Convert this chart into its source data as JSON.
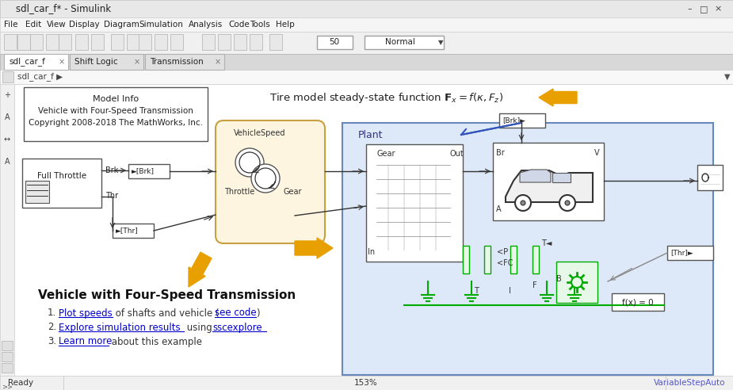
{
  "title": "sdl_car_f* - Simulink",
  "bg_color": "#f0f0f0",
  "canvas_color": "#ffffff",
  "statusbar_text_left": "Ready",
  "statusbar_text_mid": "153%",
  "statusbar_text_right": "VariableStepAuto",
  "menubar_items": [
    "File",
    "Edit",
    "View",
    "Display",
    "Diagram",
    "Simulation",
    "Analysis",
    "Code",
    "Tools",
    "Help"
  ],
  "tab_data": [
    [
      "sdl_car_f",
      true
    ],
    [
      "Shift Logic",
      false
    ],
    [
      "Transmission",
      false
    ]
  ],
  "breadcrumb": "sdl_car_f ▶",
  "model_info_text": [
    "Model Info",
    "Vehicle with Four-Speed Transmission",
    "Copyright 2008-2018 The MathWorks, Inc."
  ],
  "bottom_title": "Vehicle with Four-Speed Transmission",
  "plant_label": "Plant",
  "plant_bg": "#dde8f8",
  "shift_logic_bg": "#fdf5e0",
  "link_color": "#0000cc",
  "arrow_orange": "#e8a000",
  "green_line": "#00aa00",
  "window_bg": "#f0f0f0"
}
